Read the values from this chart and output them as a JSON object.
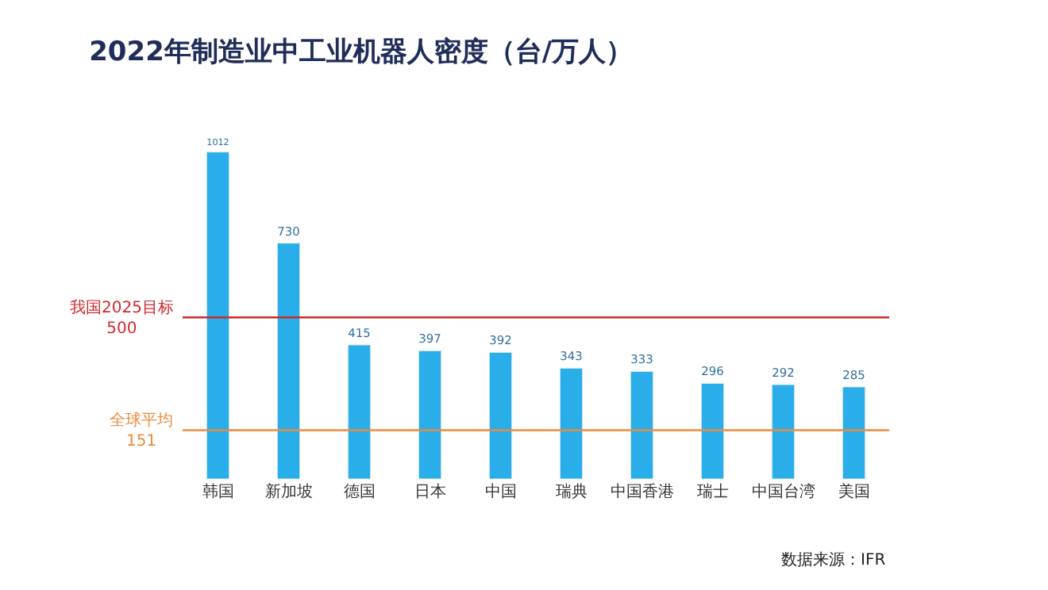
{
  "chart_data": {
    "type": "bar",
    "title": "2022年制造业中工业机器人密度（台/万人）",
    "categories": [
      "韩国",
      "新加坡",
      "德国",
      "日本",
      "中国",
      "瑞典",
      "中国香港",
      "瑞士",
      "中国台湾",
      "美国"
    ],
    "values": [
      1012,
      730,
      415,
      397,
      392,
      343,
      333,
      296,
      292,
      285
    ],
    "color": "#29aee9",
    "data_labels": true,
    "ref_lines": [
      {
        "axis": "y",
        "value": 500,
        "label": "我国2025目标\n500",
        "color": "#d0282c"
      },
      {
        "axis": "y",
        "value": 151,
        "label": "全球平均\n151",
        "color": "#ed8a3c"
      }
    ],
    "annotations": [
      "数据来源：IFR"
    ]
  }
}
